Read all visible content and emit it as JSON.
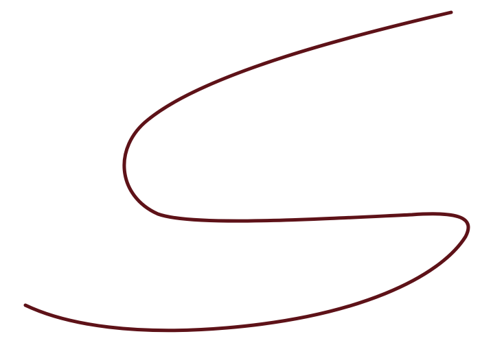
{
  "drawing": {
    "stroke_color": "#5e1218",
    "background_color": "#ffffff"
  }
}
